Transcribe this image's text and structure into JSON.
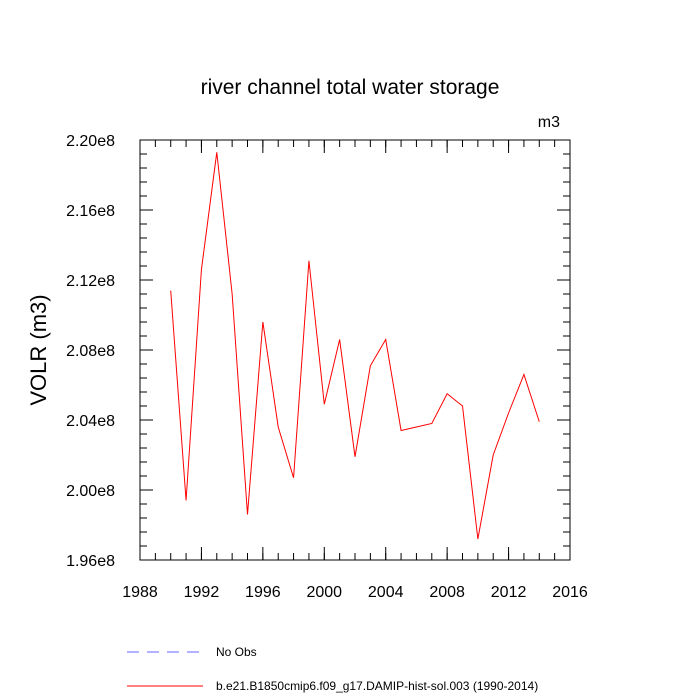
{
  "chart_data": {
    "type": "line",
    "title": "river channel total water storage",
    "units_label": "m3",
    "xlabel": "",
    "ylabel": "VOLR  (m3)",
    "xlim": [
      1988,
      2016
    ],
    "ylim": [
      196000000.0,
      220000000.0
    ],
    "x_ticks": [
      1988,
      1992,
      1996,
      2000,
      2004,
      2008,
      2012,
      2016
    ],
    "x_tick_labels": [
      "1988",
      "1992",
      "1996",
      "2000",
      "2004",
      "2008",
      "2012",
      "2016"
    ],
    "y_ticks": [
      196000000.0,
      200000000.0,
      204000000.0,
      208000000.0,
      212000000.0,
      216000000.0,
      220000000.0
    ],
    "y_tick_labels": [
      "1.96e8",
      "2.00e8",
      "2.04e8",
      "2.08e8",
      "2.12e8",
      "2.16e8",
      "2.20e8"
    ],
    "grid": false,
    "legend_position": "bottom-left, below plot",
    "series": [
      {
        "name": "b.e21.B1850cmip6.f09_g17.DAMIP-hist-sol.003 (1990-2014)",
        "color": "#ff0000",
        "style": "solid",
        "x": [
          1990,
          1991,
          1992,
          1993,
          1994,
          1995,
          1996,
          1997,
          1998,
          1999,
          2000,
          2001,
          2002,
          2003,
          2004,
          2005,
          2006,
          2007,
          2008,
          2009,
          2010,
          2011,
          2012,
          2013,
          2014
        ],
        "y": [
          211400000.0,
          199400000.0,
          212600000.0,
          219300000.0,
          211200000.0,
          198600000.0,
          209600000.0,
          203600000.0,
          200700000.0,
          213100000.0,
          204900000.0,
          208600000.0,
          201900000.0,
          207100000.0,
          208600000.0,
          203400000.0,
          203600000.0,
          203800000.0,
          205500000.0,
          204800000.0,
          197200000.0,
          202000000.0,
          204400000.0,
          206600000.0,
          203900000.0
        ]
      },
      {
        "name": "No Obs",
        "color": "#6666ff",
        "style": "dashed",
        "x": [],
        "y": []
      }
    ]
  }
}
